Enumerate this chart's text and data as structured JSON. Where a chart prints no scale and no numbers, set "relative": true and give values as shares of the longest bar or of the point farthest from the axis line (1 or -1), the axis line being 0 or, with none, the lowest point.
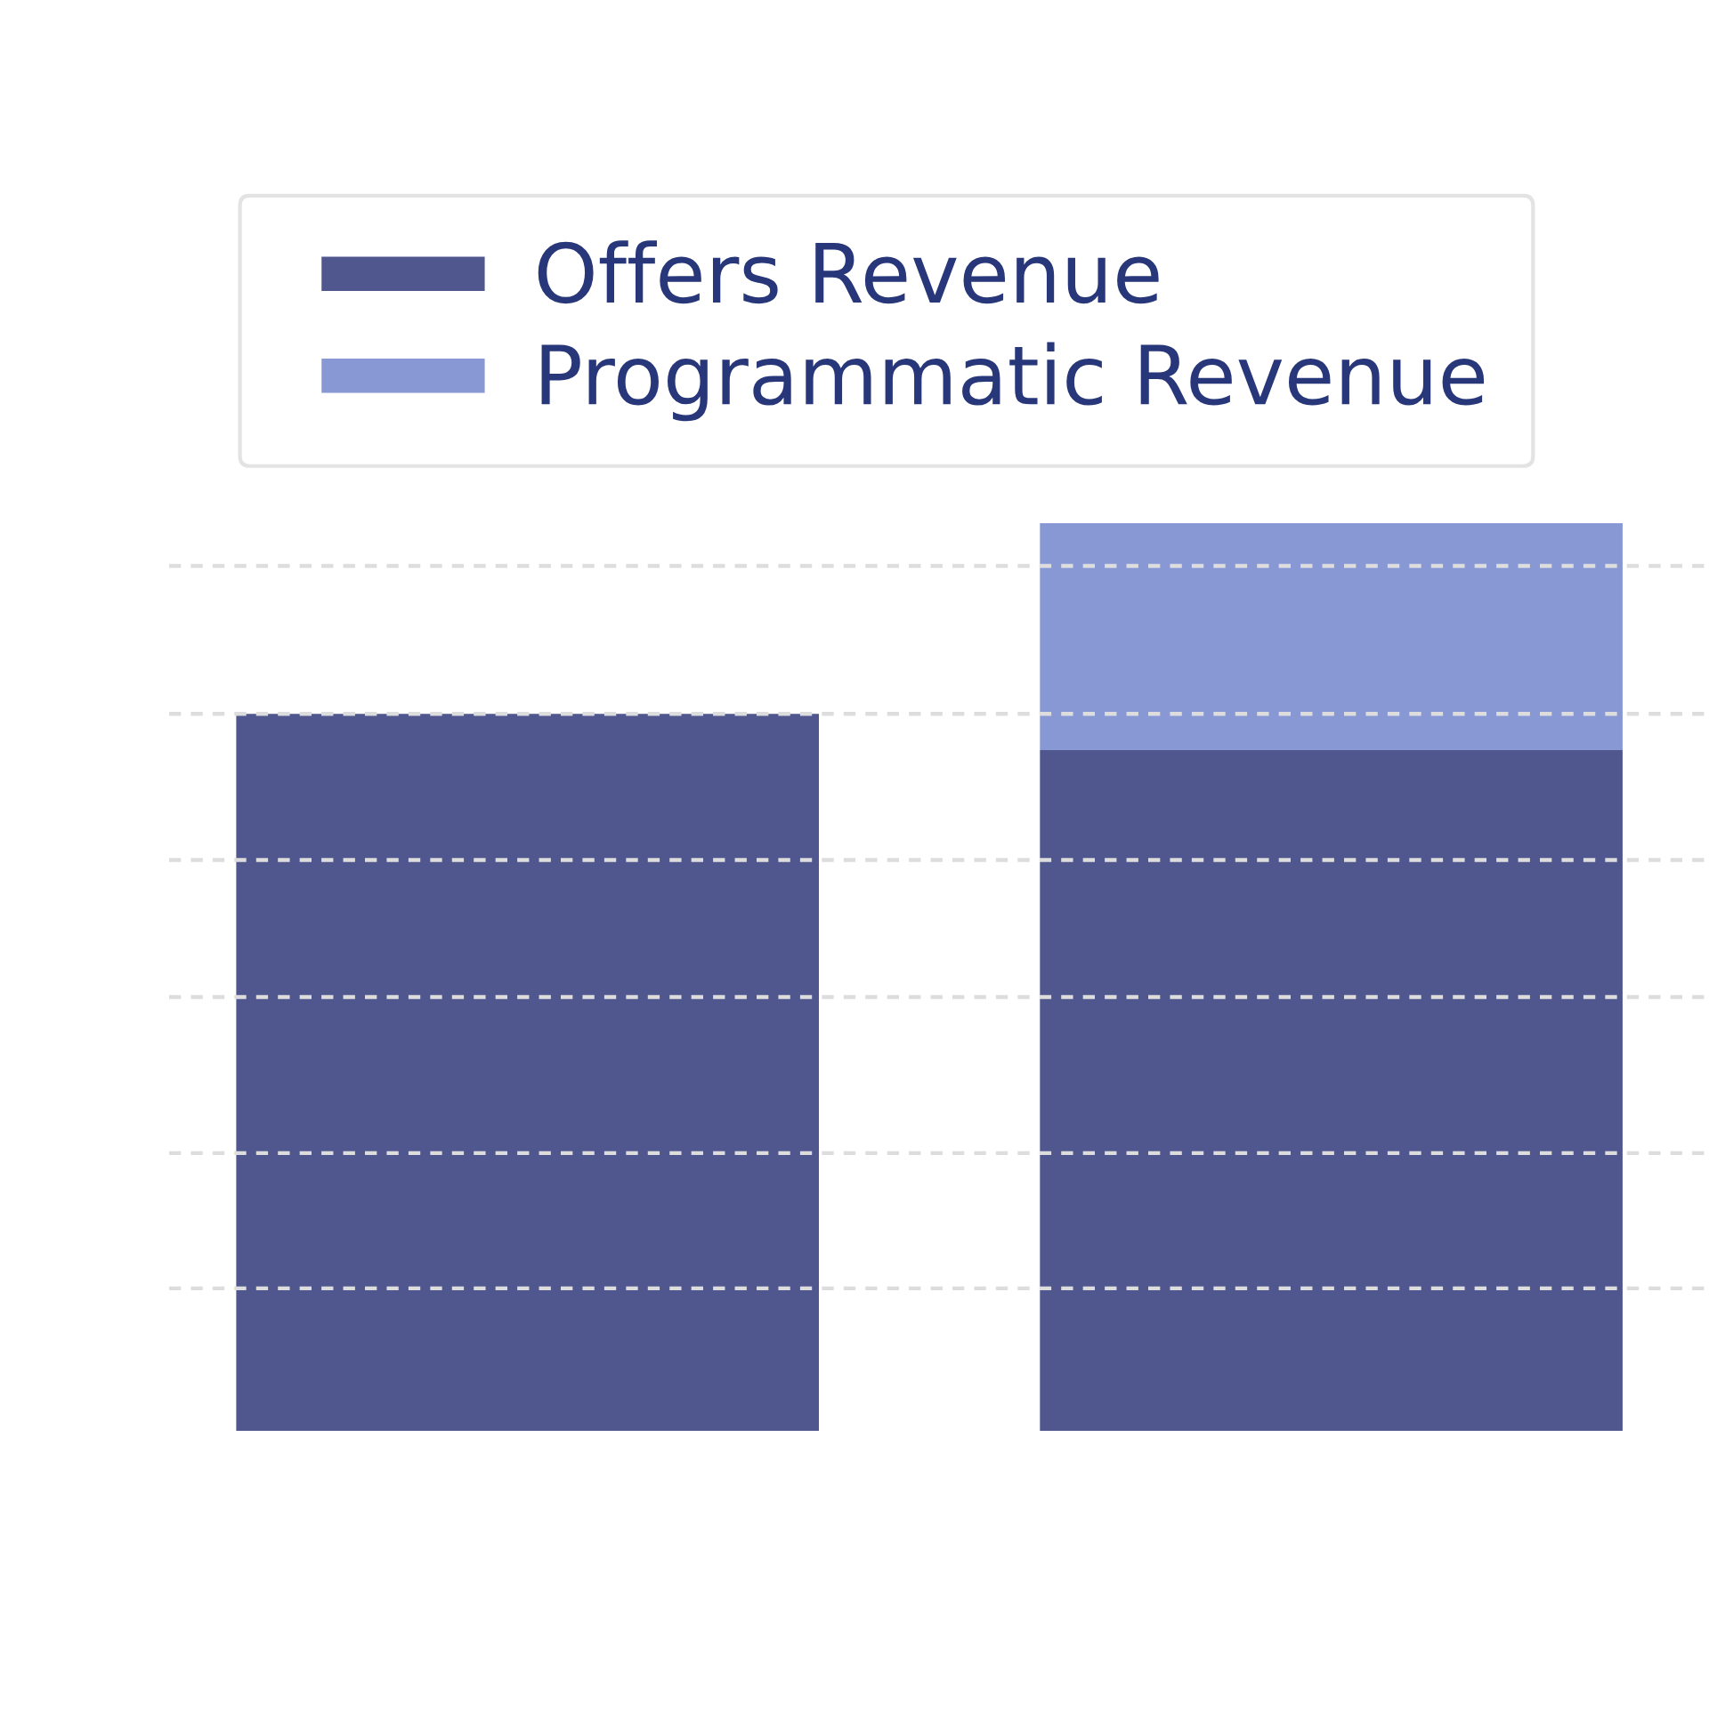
{
  "chart_data": {
    "type": "bar",
    "relative": true,
    "stacked": true,
    "categories": [
      null,
      null
    ],
    "series": [
      {
        "name": "Offers Revenue",
        "color": "#50578e",
        "values": [
          0.79,
          0.75
        ]
      },
      {
        "name": "Programmatic Revenue",
        "color": "#8898d4",
        "values": [
          null,
          0.25
        ]
      }
    ],
    "ref_lines": [
      {
        "axis": "y",
        "value": 0.157,
        "color": "#dddddd",
        "line_style": "dashed"
      },
      {
        "axis": "y",
        "value": 0.306,
        "color": "#dddddd",
        "line_style": "dashed"
      },
      {
        "axis": "y",
        "value": 0.478,
        "color": "#dddddd",
        "line_style": "dashed"
      },
      {
        "axis": "y",
        "value": 0.629,
        "color": "#dddddd",
        "line_style": "dashed"
      },
      {
        "axis": "y",
        "value": 0.79,
        "color": "#dddddd",
        "line_style": "dashed"
      },
      {
        "axis": "y",
        "value": 0.953,
        "color": "#dddddd",
        "line_style": "dashed"
      }
    ],
    "legend": "top"
  }
}
